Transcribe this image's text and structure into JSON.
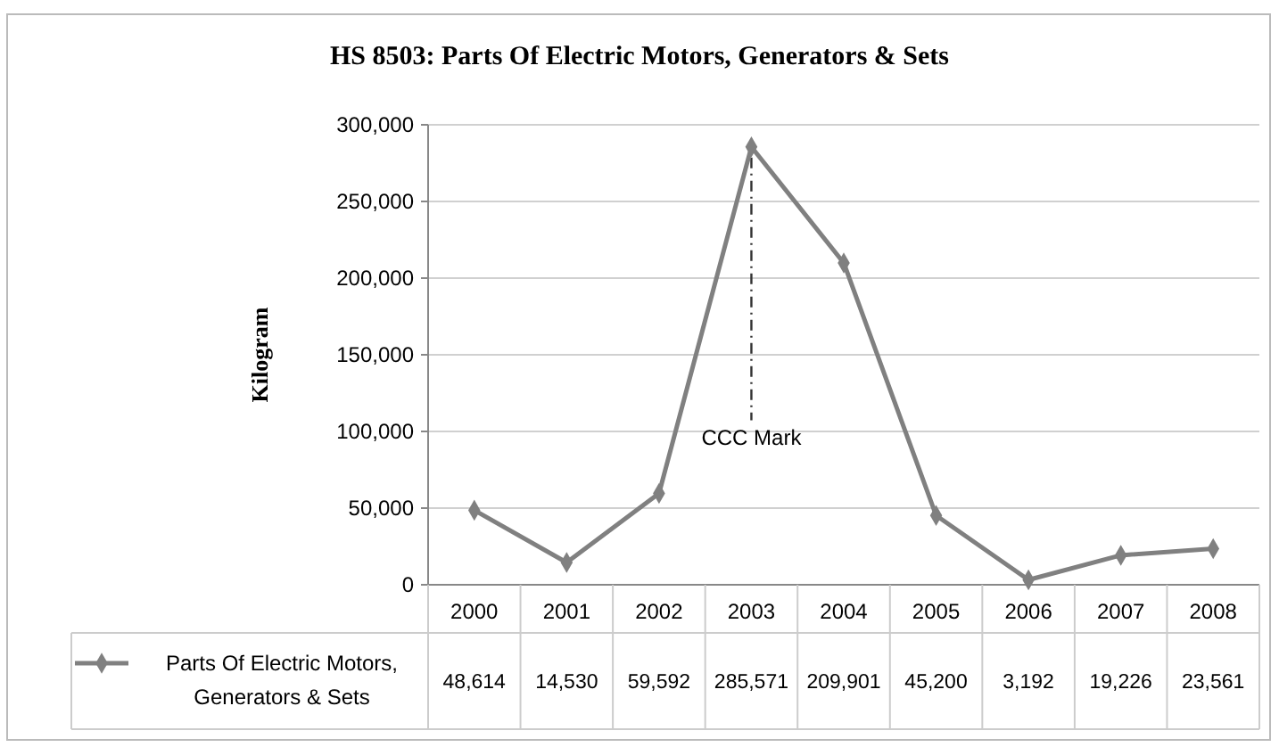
{
  "chart_data": {
    "type": "line",
    "title": "HS 8503: Parts Of Electric Motors, Generators & Sets",
    "ylabel": "Kilogram",
    "categories": [
      "2000",
      "2001",
      "2002",
      "2003",
      "2004",
      "2005",
      "2006",
      "2007",
      "2008"
    ],
    "series": [
      {
        "name": "Parts Of Electric Motors, Generators & Sets",
        "color": "#808080",
        "values": [
          48614,
          14530,
          59592,
          285571,
          209901,
          45200,
          3192,
          19226,
          23561
        ],
        "value_labels": [
          "48,614",
          "14,530",
          "59,592",
          "285,571",
          "209,901",
          "45,200",
          "3,192",
          "19,226",
          "23,561"
        ]
      }
    ],
    "ylim": [
      0,
      300000
    ],
    "yticks": [
      {
        "value": 0,
        "label": "0"
      },
      {
        "value": 50000,
        "label": "50,000"
      },
      {
        "value": 100000,
        "label": "100,000"
      },
      {
        "value": 150000,
        "label": "150,000"
      },
      {
        "value": 200000,
        "label": "200,000"
      },
      {
        "value": 250000,
        "label": "250,000"
      },
      {
        "value": 300000,
        "label": "300,000"
      }
    ],
    "grid": "y",
    "marker": "diamond",
    "line_style": "solid",
    "legend": "bottom left",
    "annotations": [
      {
        "text": "CCC Mark",
        "x": "2003",
        "y": 285571
      }
    ]
  }
}
